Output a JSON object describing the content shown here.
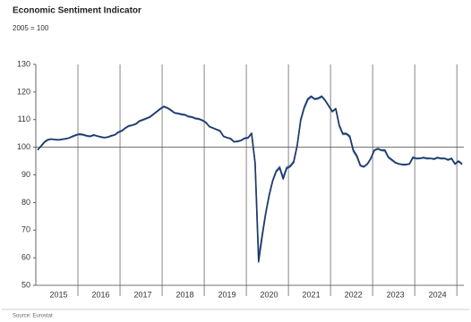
{
  "chart_data": {
    "type": "line",
    "title": "Economic Sentiment Indicator",
    "subtitle": "2005 = 100",
    "source": "Source: Eurostat",
    "categories": [
      null,
      null,
      null,
      null,
      null,
      null,
      "2015",
      null,
      null,
      null,
      null,
      null,
      null,
      null,
      null,
      null,
      null,
      null,
      "2016",
      null,
      null,
      null,
      null,
      null,
      null,
      null,
      null,
      null,
      null,
      null,
      "2017",
      null,
      null,
      null,
      null,
      null,
      null,
      null,
      null,
      null,
      null,
      null,
      "2018",
      null,
      null,
      null,
      null,
      null,
      null,
      null,
      null,
      null,
      null,
      null,
      "2019",
      null,
      null,
      null,
      null,
      null,
      null,
      null,
      null,
      null,
      null,
      null,
      "2020",
      null,
      null,
      null,
      null,
      null,
      null,
      null,
      null,
      null,
      null,
      null,
      "2021",
      null,
      null,
      null,
      null,
      null,
      null,
      null,
      null,
      null,
      null,
      null,
      "2022",
      null,
      null,
      null,
      null,
      null,
      null,
      null,
      null,
      null,
      null,
      null,
      "2023",
      null,
      null,
      null,
      null,
      null,
      null,
      null,
      null,
      null,
      null,
      null,
      "2024",
      null,
      null,
      null,
      null,
      null,
      null,
      null
    ],
    "series": [
      {
        "color": "#4f7fbf",
        "values": [
          99,
          100.3,
          101.8,
          102.6,
          102.9,
          102.7,
          102.6,
          102.8,
          103,
          103.3,
          103.8,
          104.3,
          104.6,
          104.4,
          104,
          103.8,
          104.3,
          104,
          103.6,
          103.4,
          103.6,
          104,
          104.4,
          105.3,
          105.8,
          106.8,
          107.6,
          107.9,
          108.3,
          109.3,
          109.8,
          110.3,
          110.8,
          111.8,
          112.8,
          113.8,
          114.6,
          114.1,
          113.3,
          112.4,
          112.1,
          111.8,
          111.6,
          111,
          110.8,
          110.3,
          110.1,
          109.6,
          108.8,
          107.4,
          106.9,
          106.3,
          105.8,
          103.9,
          103.4,
          103,
          101.9,
          102,
          102.4,
          103.1,
          103.3,
          104.9,
          94.6,
          60.2,
          68.3,
          76.2,
          82.8,
          88,
          91.5,
          93,
          89.2,
          92.8,
          93.4,
          95,
          100.8,
          109.6,
          114,
          117,
          118.2,
          117.3,
          117.5,
          118.2,
          116.8,
          114.8,
          112.8,
          113.8,
          107.6,
          104.6,
          104.7,
          103.6,
          98.5,
          96.5,
          93.2,
          92.8,
          93.8,
          95.8,
          98.8,
          99.3,
          98.8,
          98.6,
          96.2,
          95.2,
          94.3,
          93.9,
          93.6,
          93.6,
          93.9,
          96.1,
          95.8,
          95.9,
          96.1,
          95.8,
          95.9,
          95.6,
          96.1,
          95.8,
          95.9,
          95.3,
          95.8,
          93.8,
          94.8,
          93.7
        ]
      },
      {
        "color": "#1f3864",
        "values": [
          99,
          100.5,
          102,
          102.8,
          103,
          102.8,
          102.7,
          102.9,
          103.1,
          103.4,
          104,
          104.5,
          104.8,
          104.6,
          104.2,
          104,
          104.5,
          104.1,
          103.8,
          103.5,
          103.7,
          104.2,
          104.5,
          105.5,
          106,
          107,
          107.8,
          108,
          108.5,
          109.5,
          110,
          110.5,
          111,
          112,
          113,
          114,
          114.8,
          114.3,
          113.5,
          112.5,
          112.3,
          112,
          111.8,
          111.2,
          111,
          110.5,
          110.3,
          109.8,
          109,
          107.5,
          107,
          106.5,
          106,
          104,
          103.5,
          103.2,
          102,
          102.2,
          102.5,
          103.3,
          103.5,
          105.1,
          94.2,
          58.5,
          67.5,
          75.7,
          82.4,
          87.7,
          91.1,
          92.5,
          88.5,
          92.3,
          93,
          94.5,
          100.5,
          110,
          114.5,
          117.5,
          118.5,
          117.5,
          117.8,
          118.5,
          117,
          115,
          113,
          114,
          108,
          105,
          105,
          104,
          99,
          97,
          93.5,
          93,
          94,
          96,
          99,
          99.5,
          99,
          99,
          96.5,
          95.5,
          94.5,
          94,
          93.8,
          93.8,
          94,
          96.4,
          96,
          96,
          96.3,
          96,
          96,
          95.8,
          96.3,
          96,
          96,
          95.5,
          96,
          94,
          95,
          94
        ]
      }
    ],
    "ylim": [
      50,
      130
    ],
    "yticks": [
      50,
      60,
      70,
      80,
      90,
      100,
      110,
      120,
      130
    ],
    "reference_line": 100
  }
}
